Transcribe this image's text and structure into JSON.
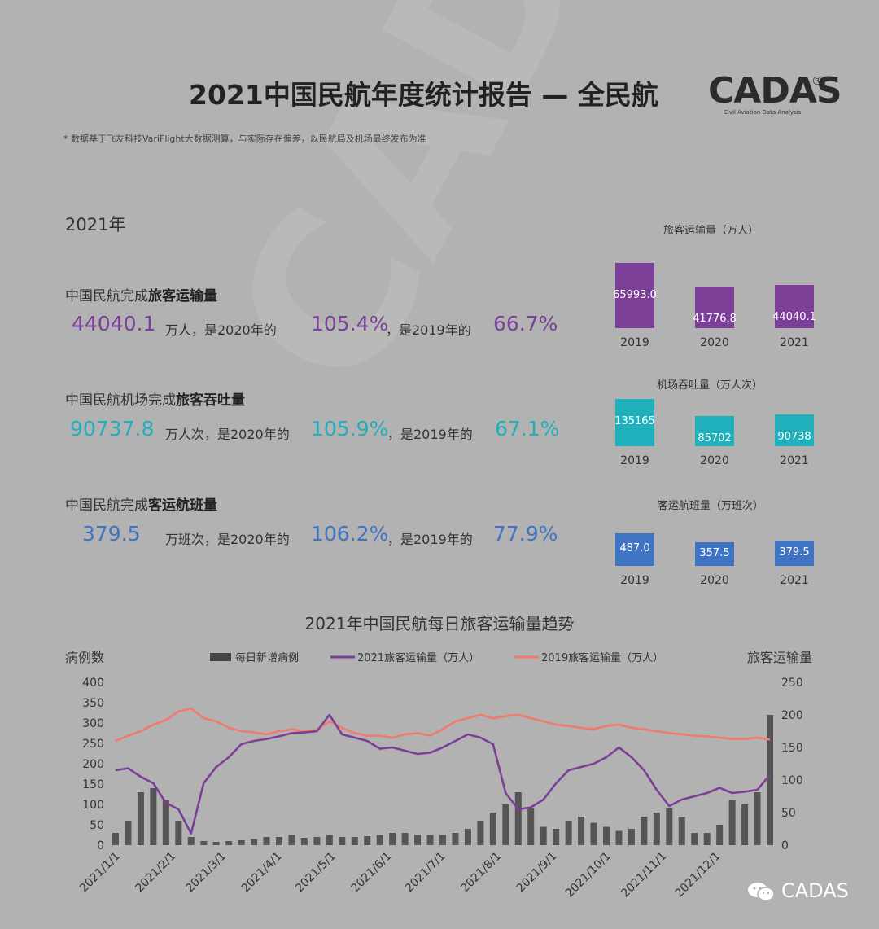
{
  "header": {
    "title": "2021中国民航年度统计报告 — 全民航",
    "logo": "CADAS",
    "logo_reg": "®",
    "logo_sub": "Civil Aviation Data Analysis",
    "disclaimer": "* 数据基于飞友科技VariFlight大数据测算，与实际存在偏差，以民航局及机场最终发布为准"
  },
  "watermark": "CADAS",
  "year_label": "2021年",
  "stats": [
    {
      "label_prefix": "中国民航完成",
      "label_bold": "旅客运输量",
      "value": "44040.1",
      "unit_text": "万人，是2020年的",
      "vs2020": "105.4%",
      "mid_text": "，是2019年的",
      "vs2019": "66.7%",
      "color": "#7b3f98"
    },
    {
      "label_prefix": "中国民航机场完成",
      "label_bold": "旅客吞吐量",
      "value": "90737.8",
      "unit_text": "万人次，是2020年的",
      "vs2020": "105.9%",
      "mid_text": "，是2019年的",
      "vs2019": "67.1%",
      "color": "#1fb0bc"
    },
    {
      "label_prefix": "中国民航完成",
      "label_bold": "客运航班量",
      "value": "379.5",
      "unit_text": "万班次，是2020年的",
      "vs2020": "106.2%",
      "mid_text": "，是2019年的",
      "vs2019": "77.9%",
      "color": "#3f74c4"
    }
  ],
  "mini_charts": [
    {
      "title": "旅客运输量（万人）",
      "color": "#7b3f98",
      "years": [
        "2019",
        "2020",
        "2021"
      ],
      "values": [
        65993.0,
        41776.8,
        44040.1
      ],
      "labels": [
        "65993.0",
        "41776.8",
        "44040.1"
      ]
    },
    {
      "title": "机场吞吐量（万人次）",
      "color": "#1fb0bc",
      "years": [
        "2019",
        "2020",
        "2021"
      ],
      "values": [
        135165,
        85702,
        90738
      ],
      "labels": [
        "135165",
        "85702",
        "90738"
      ]
    },
    {
      "title": "客运航班量（万班次）",
      "color": "#3f74c4",
      "years": [
        "2019",
        "2020",
        "2021"
      ],
      "values": [
        487.0,
        357.5,
        379.5
      ],
      "labels": [
        "487.0",
        "357.5",
        "379.5"
      ]
    }
  ],
  "trend_title": "2021年中国民航每日旅客运输量趋势",
  "chart_data": {
    "type": "bar+line",
    "title": "2021年中国民航每日旅客运输量趋势",
    "ylabel_left": "病例数",
    "ylabel_right": "旅客运输量",
    "ylim_left": [
      0,
      400
    ],
    "ylim_right": [
      0,
      250
    ],
    "yticks_left": [
      0,
      50,
      100,
      150,
      200,
      250,
      300,
      350,
      400
    ],
    "yticks_right": [
      0,
      50,
      100,
      150,
      200,
      250
    ],
    "xticks": [
      "2021/1/1",
      "2021/2/1",
      "2021/3/1",
      "2021/4/1",
      "2021/5/1",
      "2021/6/1",
      "2021/7/1",
      "2021/8/1",
      "2021/9/1",
      "2021/10/1",
      "2021/11/1",
      "2021/12/1"
    ],
    "legend": "top-center",
    "series": [
      {
        "name": "每日新增病例",
        "type": "bar",
        "axis": "left",
        "color": "#444444",
        "x": [
          "2021-01-01",
          "2021-01-08",
          "2021-01-15",
          "2021-01-22",
          "2021-01-29",
          "2021-02-05",
          "2021-02-12",
          "2021-02-19",
          "2021-02-26",
          "2021-03-05",
          "2021-03-12",
          "2021-03-19",
          "2021-03-26",
          "2021-04-02",
          "2021-04-09",
          "2021-04-16",
          "2021-04-23",
          "2021-04-30",
          "2021-05-07",
          "2021-05-14",
          "2021-05-21",
          "2021-05-28",
          "2021-06-04",
          "2021-06-11",
          "2021-06-18",
          "2021-06-25",
          "2021-07-02",
          "2021-07-09",
          "2021-07-16",
          "2021-07-23",
          "2021-07-30",
          "2021-08-06",
          "2021-08-13",
          "2021-08-20",
          "2021-08-27",
          "2021-09-03",
          "2021-09-10",
          "2021-09-17",
          "2021-09-24",
          "2021-10-01",
          "2021-10-08",
          "2021-10-15",
          "2021-10-22",
          "2021-10-29",
          "2021-11-05",
          "2021-11-12",
          "2021-11-19",
          "2021-11-26",
          "2021-12-03",
          "2021-12-10",
          "2021-12-17",
          "2021-12-24",
          "2021-12-31"
        ],
        "values": [
          30,
          60,
          130,
          140,
          110,
          60,
          20,
          10,
          8,
          10,
          12,
          15,
          20,
          20,
          25,
          18,
          20,
          25,
          20,
          20,
          22,
          25,
          30,
          30,
          25,
          25,
          25,
          30,
          40,
          60,
          80,
          100,
          130,
          90,
          45,
          40,
          60,
          70,
          55,
          45,
          35,
          40,
          70,
          80,
          90,
          70,
          30,
          30,
          50,
          110,
          100,
          130,
          320
        ]
      },
      {
        "name": "2021旅客运输量（万人）",
        "type": "line",
        "axis": "right",
        "color": "#7b3f98",
        "x": [
          "2021-01-01",
          "2021-01-08",
          "2021-01-15",
          "2021-01-22",
          "2021-01-29",
          "2021-02-05",
          "2021-02-12",
          "2021-02-19",
          "2021-02-26",
          "2021-03-05",
          "2021-03-12",
          "2021-03-19",
          "2021-03-26",
          "2021-04-02",
          "2021-04-09",
          "2021-04-16",
          "2021-04-23",
          "2021-04-30",
          "2021-05-07",
          "2021-05-14",
          "2021-05-21",
          "2021-05-28",
          "2021-06-04",
          "2021-06-11",
          "2021-06-18",
          "2021-06-25",
          "2021-07-02",
          "2021-07-09",
          "2021-07-16",
          "2021-07-23",
          "2021-07-30",
          "2021-08-06",
          "2021-08-13",
          "2021-08-20",
          "2021-08-27",
          "2021-09-03",
          "2021-09-10",
          "2021-09-17",
          "2021-09-24",
          "2021-10-01",
          "2021-10-08",
          "2021-10-15",
          "2021-10-22",
          "2021-10-29",
          "2021-11-05",
          "2021-11-12",
          "2021-11-19",
          "2021-11-26",
          "2021-12-03",
          "2021-12-10",
          "2021-12-17",
          "2021-12-24",
          "2021-12-31"
        ],
        "values": [
          115,
          118,
          105,
          95,
          65,
          55,
          18,
          95,
          120,
          135,
          155,
          160,
          163,
          167,
          172,
          173,
          175,
          200,
          170,
          165,
          160,
          148,
          150,
          145,
          140,
          142,
          150,
          160,
          170,
          165,
          155,
          80,
          55,
          58,
          70,
          95,
          115,
          120,
          125,
          135,
          150,
          135,
          115,
          85,
          60,
          70,
          75,
          80,
          88,
          80,
          82,
          85,
          108
        ]
      },
      {
        "name": "2019旅客运输量（万人）",
        "type": "line",
        "axis": "right",
        "color": "#f07a6c",
        "x": [
          "2021-01-01",
          "2021-01-08",
          "2021-01-15",
          "2021-01-22",
          "2021-01-29",
          "2021-02-05",
          "2021-02-12",
          "2021-02-19",
          "2021-02-26",
          "2021-03-05",
          "2021-03-12",
          "2021-03-19",
          "2021-03-26",
          "2021-04-02",
          "2021-04-09",
          "2021-04-16",
          "2021-04-23",
          "2021-04-30",
          "2021-05-07",
          "2021-05-14",
          "2021-05-21",
          "2021-05-28",
          "2021-06-04",
          "2021-06-11",
          "2021-06-18",
          "2021-06-25",
          "2021-07-02",
          "2021-07-09",
          "2021-07-16",
          "2021-07-23",
          "2021-07-30",
          "2021-08-06",
          "2021-08-13",
          "2021-08-20",
          "2021-08-27",
          "2021-09-03",
          "2021-09-10",
          "2021-09-17",
          "2021-09-24",
          "2021-10-01",
          "2021-10-08",
          "2021-10-15",
          "2021-10-22",
          "2021-10-29",
          "2021-11-05",
          "2021-11-12",
          "2021-11-19",
          "2021-11-26",
          "2021-12-03",
          "2021-12-10",
          "2021-12-17",
          "2021-12-24",
          "2021-12-31"
        ],
        "values": [
          160,
          168,
          175,
          185,
          192,
          205,
          210,
          195,
          190,
          180,
          175,
          173,
          170,
          175,
          178,
          175,
          177,
          190,
          180,
          172,
          168,
          168,
          165,
          170,
          172,
          168,
          178,
          190,
          195,
          200,
          195,
          198,
          200,
          195,
          190,
          185,
          183,
          180,
          178,
          183,
          185,
          180,
          178,
          175,
          172,
          170,
          168,
          167,
          165,
          163,
          163,
          165,
          162
        ]
      }
    ]
  }
}
